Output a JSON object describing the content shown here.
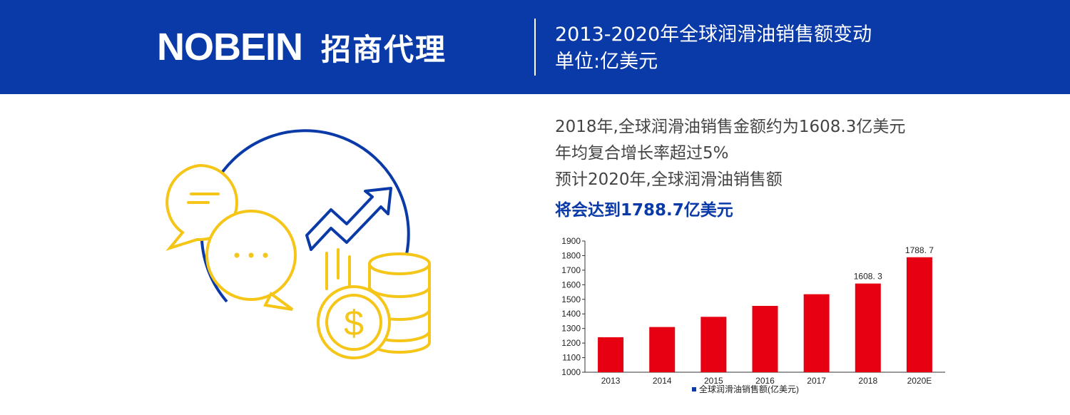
{
  "header": {
    "brand_logo": "NOBEIN",
    "brand_sub": "招商代理",
    "title": "2013-2020年全球润滑油销售额变动",
    "unit": "单位:亿美元"
  },
  "intro": {
    "line1": "2018年,全球润滑油销售金额约为1608.3亿美元",
    "line2": "年均复合增长率超过5%",
    "line3": "预计2020年,全球润滑油销售额",
    "highlight": "将会达到1788.7亿美元"
  },
  "colors": {
    "brand_blue": "#0a3aa8",
    "bar_red": "#e60012",
    "icon_yellow": "#f5c518"
  },
  "icons": [
    "chat-bubble-icon",
    "rising-arrow-icon",
    "coin-stack-icon",
    "dollar-coin-icon"
  ],
  "chart_data": {
    "type": "bar",
    "categories": [
      "2013",
      "2014",
      "2015",
      "2016",
      "2017",
      "2018",
      "2020E"
    ],
    "series": [
      {
        "name": "全球润滑油销售额(亿美元)",
        "values": [
          1240,
          1310,
          1380,
          1455,
          1535,
          1608.3,
          1788.7
        ],
        "color": "#e60012"
      }
    ],
    "data_labels": [
      "",
      "",
      "",
      "",
      "",
      "1608. 3",
      "1788. 7"
    ],
    "ylim": [
      1000,
      1900
    ],
    "yticks": [
      1000,
      1100,
      1200,
      1300,
      1400,
      1500,
      1600,
      1700,
      1800,
      1900
    ],
    "grid": false,
    "legend": "bottom"
  }
}
